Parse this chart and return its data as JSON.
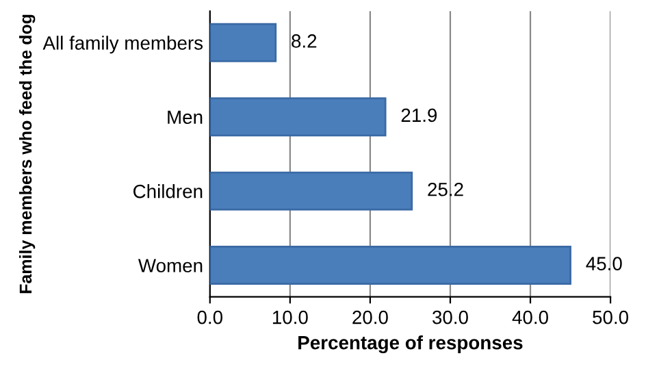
{
  "chart_data": {
    "type": "bar",
    "orientation": "horizontal",
    "xlabel": "Percentage of responses",
    "ylabel": "Family members who feed the dog",
    "categories": [
      "All family members",
      "Men",
      "Children",
      "Women"
    ],
    "values": [
      8.2,
      21.9,
      25.2,
      45.0
    ],
    "value_labels": [
      "8.2",
      "21.9",
      "25.2",
      "45.0"
    ],
    "color": "#4a7ebb",
    "xlim": [
      0,
      50
    ],
    "xticks": [
      {
        "value": 0,
        "label": "0.0"
      },
      {
        "value": 10,
        "label": "10.0"
      },
      {
        "value": 20,
        "label": "20.0"
      },
      {
        "value": 30,
        "label": "30.0"
      },
      {
        "value": 40,
        "label": "40.0"
      },
      {
        "value": 50,
        "label": "50.0"
      }
    ],
    "grid": "x"
  }
}
